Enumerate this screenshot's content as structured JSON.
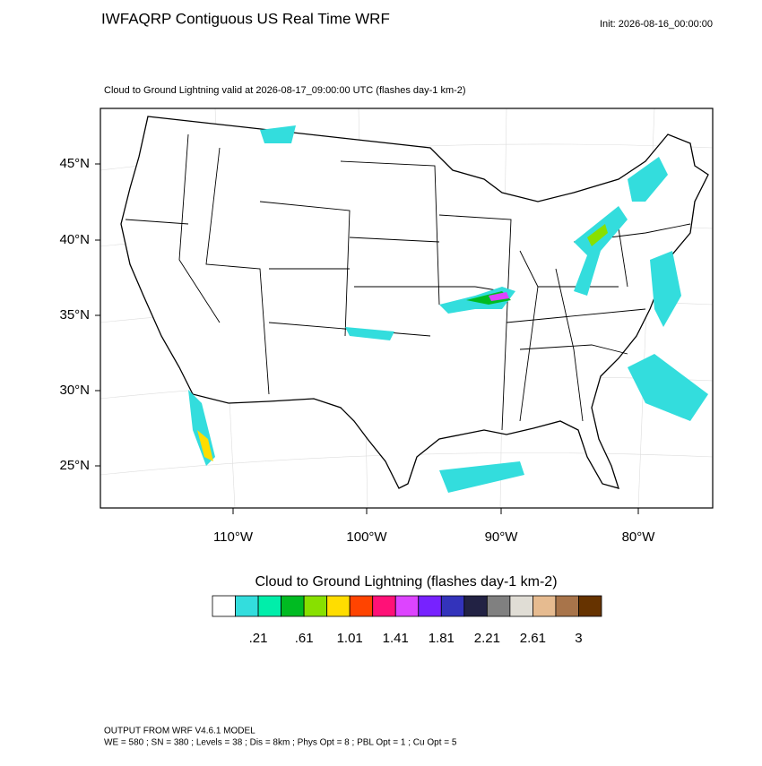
{
  "header": {
    "title": "IWFAQRP Contiguous US Real Time WRF",
    "init": "Init: 2026-08-16_00:00:00"
  },
  "plot": {
    "subtitle": "Cloud to Ground Lightning valid at 2026-08-17_09:00:00 UTC   (flashes day-1 km-2)",
    "lat_labels": [
      "45°N",
      "40°N",
      "35°N",
      "30°N",
      "25°N"
    ],
    "lon_labels": [
      "110°W",
      "100°W",
      "90°W",
      "80°W"
    ]
  },
  "colorbar": {
    "title": "Cloud to Ground Lightning  (flashes day-1 km-2)",
    "colors": [
      "#ffffff",
      "#33dddd",
      "#00eeaa",
      "#00bb22",
      "#88e000",
      "#ffdd00",
      "#ff4400",
      "#ff1177",
      "#dd44ff",
      "#7722ff",
      "#3333bb",
      "#222244",
      "#808080",
      "#e0ddd5",
      "#e6bb90",
      "#a8744a",
      "#663300"
    ],
    "labels": [
      ".21",
      ".61",
      "1.01",
      "1.41",
      "1.81",
      "2.21",
      "2.61",
      "3"
    ]
  },
  "footer": {
    "lines": [
      "OUTPUT FROM WRF V4.6.1 MODEL",
      "WE = 580 ; SN = 380 ; Levels = 38 ; Dis = 8km ; Phys Opt = 8 ; PBL Opt = 1 ; Cu Opt = 5"
    ]
  }
}
